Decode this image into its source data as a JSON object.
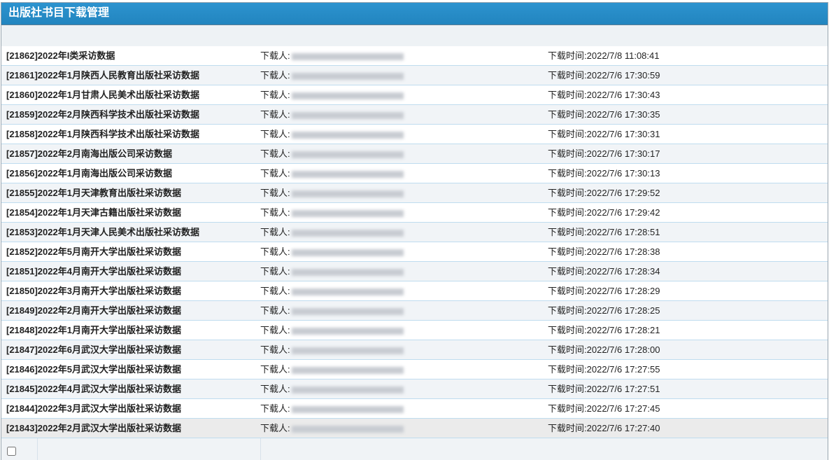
{
  "header": {
    "title": "出版社书目下载管理"
  },
  "labels": {
    "downloader": "下载人:",
    "time_prefix": "下载时间:"
  },
  "rows": [
    {
      "title": "[21862]2022年I类采访数据",
      "time": "2022/7/8 11:08:41"
    },
    {
      "title": "[21861]2022年1月陕西人民教育出版社采访数据",
      "time": "2022/7/6 17:30:59"
    },
    {
      "title": "[21860]2022年1月甘肃人民美术出版社采访数据",
      "time": "2022/7/6 17:30:43"
    },
    {
      "title": "[21859]2022年2月陕西科学技术出版社采访数据",
      "time": "2022/7/6 17:30:35"
    },
    {
      "title": "[21858]2022年1月陕西科学技术出版社采访数据",
      "time": "2022/7/6 17:30:31"
    },
    {
      "title": "[21857]2022年2月南海出版公司采访数据",
      "time": "2022/7/6 17:30:17"
    },
    {
      "title": "[21856]2022年1月南海出版公司采访数据",
      "time": "2022/7/6 17:30:13"
    },
    {
      "title": "[21855]2022年1月天津教育出版社采访数据",
      "time": "2022/7/6 17:29:52"
    },
    {
      "title": "[21854]2022年1月天津古籍出版社采访数据",
      "time": "2022/7/6 17:29:42"
    },
    {
      "title": "[21853]2022年1月天津人民美术出版社采访数据",
      "time": "2022/7/6 17:28:51"
    },
    {
      "title": "[21852]2022年5月南开大学出版社采访数据",
      "time": "2022/7/6 17:28:38"
    },
    {
      "title": "[21851]2022年4月南开大学出版社采访数据",
      "time": "2022/7/6 17:28:34"
    },
    {
      "title": "[21850]2022年3月南开大学出版社采访数据",
      "time": "2022/7/6 17:28:29"
    },
    {
      "title": "[21849]2022年2月南开大学出版社采访数据",
      "time": "2022/7/6 17:28:25"
    },
    {
      "title": "[21848]2022年1月南开大学出版社采访数据",
      "time": "2022/7/6 17:28:21"
    },
    {
      "title": "[21847]2022年6月武汉大学出版社采访数据",
      "time": "2022/7/6 17:28:00"
    },
    {
      "title": "[21846]2022年5月武汉大学出版社采访数据",
      "time": "2022/7/6 17:27:55"
    },
    {
      "title": "[21845]2022年4月武汉大学出版社采访数据",
      "time": "2022/7/6 17:27:51"
    },
    {
      "title": "[21844]2022年3月武汉大学出版社采访数据",
      "time": "2022/7/6 17:27:45"
    },
    {
      "title": "[21843]2022年2月武汉大学出版社采访数据",
      "time": "2022/7/6 17:27:40"
    }
  ]
}
